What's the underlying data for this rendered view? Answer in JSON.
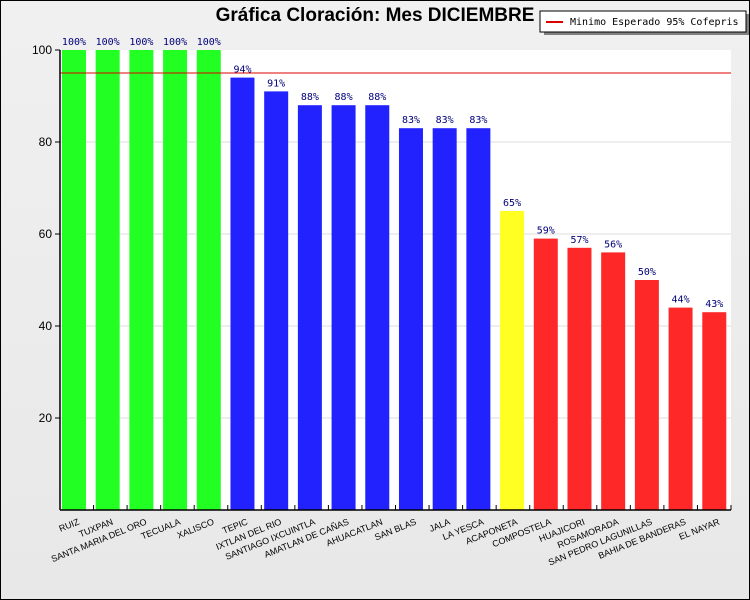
{
  "chart_data": {
    "type": "bar",
    "title": "Gráfica Cloración: Mes DICIEMBRE",
    "xlabel": "",
    "ylabel": "",
    "ylim": [
      0,
      100
    ],
    "yticks": [
      20,
      40,
      60,
      80,
      100
    ],
    "grid": true,
    "legend_position": "top-right",
    "categories": [
      "RUIZ",
      "TUXPAN",
      "SANTA MARIA DEL ORO",
      "TECUALA",
      "XALISCO",
      "TEPIC",
      "IXTLAN DEL RIO",
      "SANTIAGO IXCUINTLA",
      "AMATLAN DE CAÑAS",
      "AHUACATLAN",
      "SAN BLAS",
      "JALA",
      "LA YESCA",
      "ACAPONETA",
      "COMPOSTELA",
      "HUAJICORI",
      "ROSAMORADA",
      "SAN PEDRO LAGUNILLAS",
      "BAHIA DE BANDERAS",
      "EL NAYAR"
    ],
    "values": [
      100,
      100,
      100,
      100,
      100,
      94,
      91,
      88,
      88,
      88,
      83,
      83,
      83,
      65,
      59,
      57,
      56,
      50,
      44,
      43
    ],
    "data_labels": [
      "100%",
      "100%",
      "100%",
      "100%",
      "100%",
      "94%",
      "91%",
      "88%",
      "88%",
      "88%",
      "83%",
      "83%",
      "83%",
      "65%",
      "59%",
      "57%",
      "56%",
      "50%",
      "44%",
      "43%"
    ],
    "bar_colors": [
      "#22ff22",
      "#22ff22",
      "#22ff22",
      "#22ff22",
      "#22ff22",
      "#2222ff",
      "#2222ff",
      "#2222ff",
      "#2222ff",
      "#2222ff",
      "#2222ff",
      "#2222ff",
      "#2222ff",
      "#ffff22",
      "#ff2828",
      "#ff2828",
      "#ff2828",
      "#ff2828",
      "#ff2828",
      "#ff2828"
    ],
    "reference_line": {
      "value": 95,
      "label": "Minimo Esperado 95% Cofepris",
      "color": "#dd0000"
    }
  }
}
